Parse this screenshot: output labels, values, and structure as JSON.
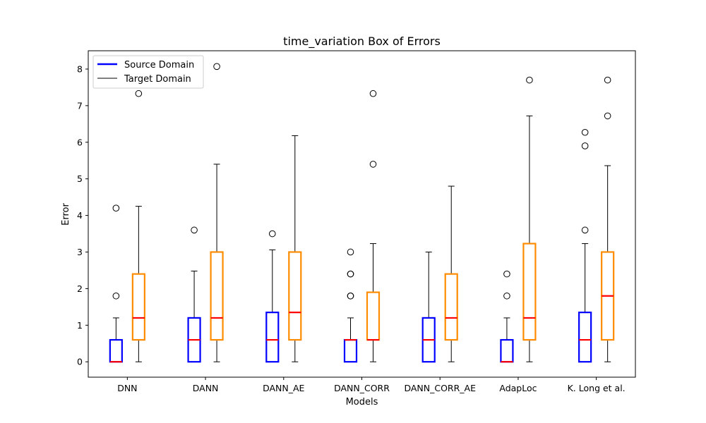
{
  "chart_data": {
    "type": "box",
    "title": "time_variation Box of Errors",
    "xlabel": "Models",
    "ylabel": "Error",
    "ylim": [
      -0.42,
      8.5
    ],
    "yticks": [
      0,
      1,
      2,
      3,
      4,
      5,
      6,
      7,
      8
    ],
    "grid": false,
    "legend_position": "upper-left",
    "categories": [
      "DNN",
      "DANN",
      "DANN_AE",
      "DANN_CORR",
      "DANN_CORR_AE",
      "AdapLoc",
      "K. Long et al."
    ],
    "series": [
      {
        "name": "Source Domain",
        "color": "#0000ff",
        "boxes": [
          {
            "whislo": 0,
            "q1": 0,
            "med": 0,
            "q3": 0.6,
            "whishi": 1.2,
            "fliers": [
              1.8,
              4.2
            ]
          },
          {
            "whislo": 0,
            "q1": 0,
            "med": 0.6,
            "q3": 1.2,
            "whishi": 2.48,
            "fliers": [
              3.6
            ]
          },
          {
            "whislo": 0,
            "q1": 0,
            "med": 0.6,
            "q3": 1.35,
            "whishi": 3.06,
            "fliers": [
              3.5
            ]
          },
          {
            "whislo": 0,
            "q1": 0,
            "med": 0.6,
            "q3": 0.6,
            "whishi": 1.2,
            "fliers": [
              1.8,
              1.8,
              2.4,
              2.4,
              3.0
            ]
          },
          {
            "whislo": 0,
            "q1": 0,
            "med": 0.6,
            "q3": 1.2,
            "whishi": 3.0,
            "fliers": []
          },
          {
            "whislo": 0,
            "q1": 0,
            "med": 0,
            "q3": 0.6,
            "whishi": 1.2,
            "fliers": [
              1.8,
              2.4
            ]
          },
          {
            "whislo": 0,
            "q1": 0,
            "med": 0.6,
            "q3": 1.35,
            "whishi": 3.23,
            "fliers": [
              3.6,
              5.9,
              6.27
            ]
          }
        ]
      },
      {
        "name": "Target Domain",
        "color": "#ff8c00",
        "boxes": [
          {
            "whislo": 0,
            "q1": 0.6,
            "med": 1.2,
            "q3": 2.4,
            "whishi": 4.25,
            "fliers": [
              7.33
            ]
          },
          {
            "whislo": 0,
            "q1": 0.6,
            "med": 1.2,
            "q3": 3.0,
            "whishi": 5.4,
            "fliers": [
              8.07
            ]
          },
          {
            "whislo": 0,
            "q1": 0.6,
            "med": 1.35,
            "q3": 3.0,
            "whishi": 6.18,
            "fliers": []
          },
          {
            "whislo": 0,
            "q1": 0.6,
            "med": 0.6,
            "q3": 1.9,
            "whishi": 3.23,
            "fliers": [
              5.4,
              7.33
            ]
          },
          {
            "whislo": 0,
            "q1": 0.6,
            "med": 1.2,
            "q3": 2.4,
            "whishi": 4.8,
            "fliers": []
          },
          {
            "whislo": 0,
            "q1": 0.6,
            "med": 1.2,
            "q3": 3.23,
            "whishi": 6.72,
            "fliers": [
              7.7
            ]
          },
          {
            "whislo": 0,
            "q1": 0.6,
            "med": 1.8,
            "q3": 3.0,
            "whishi": 5.36,
            "fliers": [
              6.72,
              7.7
            ]
          }
        ]
      }
    ],
    "median_color": "#ff0000",
    "legend": [
      {
        "label": "Source Domain",
        "color": "#0000ff",
        "style": "thick"
      },
      {
        "label": "Target Domain",
        "color": "#000000",
        "style": "thin"
      }
    ]
  }
}
